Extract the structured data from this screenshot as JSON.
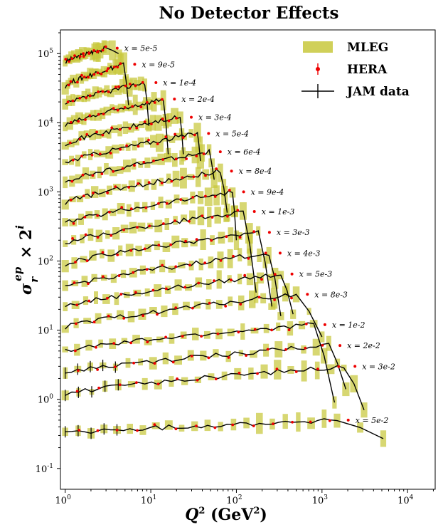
{
  "chart_data": {
    "type": "line",
    "title": "No Detector Effects",
    "xlabel": "Q^2 (GeV^2)",
    "ylabel": "σ_r^{ep} × 2^i",
    "xscale": "log",
    "yscale": "log",
    "xlim": [
      0.88,
      21000
    ],
    "ylim": [
      0.05,
      220000
    ],
    "x_ticks": [
      "10^0",
      "10^1",
      "10^2",
      "10^3",
      "10^4"
    ],
    "y_ticks": [
      "10^-1",
      "10^0",
      "10^1",
      "10^2",
      "10^3",
      "10^4",
      "10^5"
    ],
    "legend": {
      "placement": "top-right",
      "entries": [
        "MLEG",
        "HERA",
        "JAM data"
      ]
    },
    "colors": {
      "mleg": "#c8c83c",
      "hera": "#ee0000",
      "jam": "#000000"
    },
    "series": [
      {
        "label": "x = 5e-5",
        "start_y": 75000,
        "peak_y": 120000,
        "peak_x": 3.0,
        "end_x": 4.2,
        "end_y": 100000
      },
      {
        "label": "x = 9e-5",
        "start_y": 34000,
        "peak_y": 70000,
        "peak_x": 4.8,
        "end_x": 5.5,
        "end_y": 18000
      },
      {
        "label": "x = 1e-4",
        "start_y": 18000,
        "peak_y": 38000,
        "peak_x": 8.5,
        "end_x": 9.5,
        "end_y": 9000
      },
      {
        "label": "x = 2e-4",
        "start_y": 9000,
        "peak_y": 22000,
        "peak_x": 14,
        "end_x": 16,
        "end_y": 3500
      },
      {
        "label": "x = 3e-4",
        "start_y": 5000,
        "peak_y": 12000,
        "peak_x": 22,
        "end_x": 24,
        "end_y": 3500
      },
      {
        "label": "x = 5e-4",
        "start_y": 2600,
        "peak_y": 7000,
        "peak_x": 35,
        "end_x": 38,
        "end_y": 2800
      },
      {
        "label": "x = 6e-4",
        "start_y": 1400,
        "peak_y": 3800,
        "peak_x": 48,
        "end_x": 55,
        "end_y": 1500
      },
      {
        "label": "x = 8e-4",
        "start_y": 700,
        "peak_y": 2000,
        "peak_x": 65,
        "end_x": 78,
        "end_y": 500
      },
      {
        "label": "x = 9e-4",
        "start_y": 350,
        "peak_y": 1000,
        "peak_x": 90,
        "end_x": 100,
        "end_y": 200
      },
      {
        "label": "x = 1e-3",
        "start_y": 180,
        "peak_y": 520,
        "peak_x": 120,
        "end_x": 170,
        "end_y": 35
      },
      {
        "label": "x = 3e-3",
        "start_y": 90,
        "peak_y": 260,
        "peak_x": 180,
        "end_x": 260,
        "end_y": 22
      },
      {
        "label": "x = 4e-3",
        "start_y": 42,
        "peak_y": 130,
        "peak_x": 240,
        "end_x": 330,
        "end_y": 16
      },
      {
        "label": "x = 5e-3",
        "start_y": 22,
        "peak_y": 65,
        "peak_x": 330,
        "end_x": 460,
        "end_y": 17
      },
      {
        "label": "x = 8e-3",
        "start_y": 11,
        "peak_y": 33,
        "peak_x": 500,
        "end_x": 1000,
        "end_y": 8
      },
      {
        "label": "x = 1e-2",
        "start_y": 5,
        "peak_y": 12,
        "peak_x": 800,
        "end_x": 1400,
        "end_y": 0.9
      },
      {
        "label": "x = 2e-2",
        "start_y": 2.4,
        "peak_y": 6,
        "peak_x": 1200,
        "end_x": 1900,
        "end_y": 1.4
      },
      {
        "label": "x = 3e-2",
        "start_y": 1.2,
        "peak_y": 3,
        "peak_x": 1800,
        "end_x": 3100,
        "end_y": 0.7
      },
      {
        "label": "x = 5e-2",
        "start_y": 0.32,
        "peak_y": 0.5,
        "peak_x": 1500,
        "end_x": 5200,
        "end_y": 0.27
      }
    ]
  }
}
